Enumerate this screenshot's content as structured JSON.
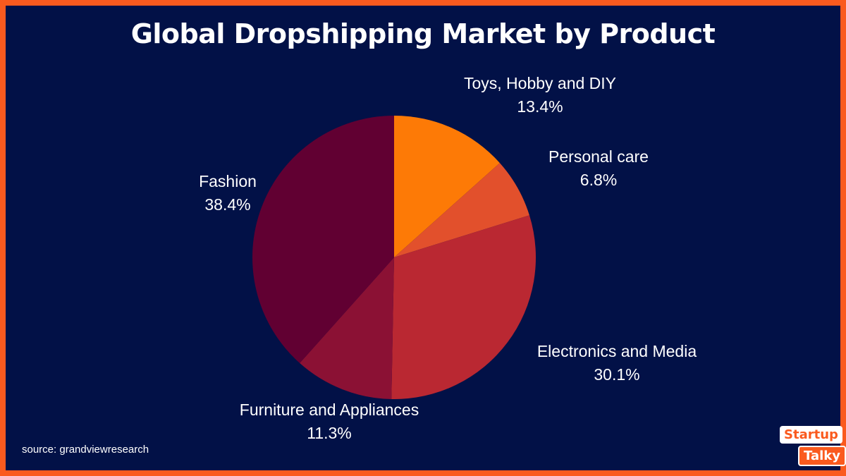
{
  "colors": {
    "background": "#021147",
    "border": "#fa5a1e",
    "slices": [
      "#fd7a06",
      "#e2502c",
      "#ba2832",
      "#8b1134",
      "#610032"
    ]
  },
  "source": "source: grandviewresearch",
  "logo": {
    "line1": "Startup",
    "line2": "Talky"
  },
  "chart_data": {
    "type": "pie",
    "title": "Global Dropshipping Market by Product",
    "slices": [
      {
        "label": "Toys, Hobby and DIY",
        "value": 13.4,
        "value_label": "13.4%"
      },
      {
        "label": "Personal care",
        "value": 6.8,
        "value_label": "6.8%"
      },
      {
        "label": "Electronics and Media",
        "value": 30.1,
        "value_label": "30.1%"
      },
      {
        "label": "Furniture and Appliances",
        "value": 11.3,
        "value_label": "11.3%"
      },
      {
        "label": "Fashion",
        "value": 38.4,
        "value_label": "38.4%"
      }
    ],
    "start_angle": "12 o'clock",
    "direction": "clockwise",
    "legend": "none"
  }
}
